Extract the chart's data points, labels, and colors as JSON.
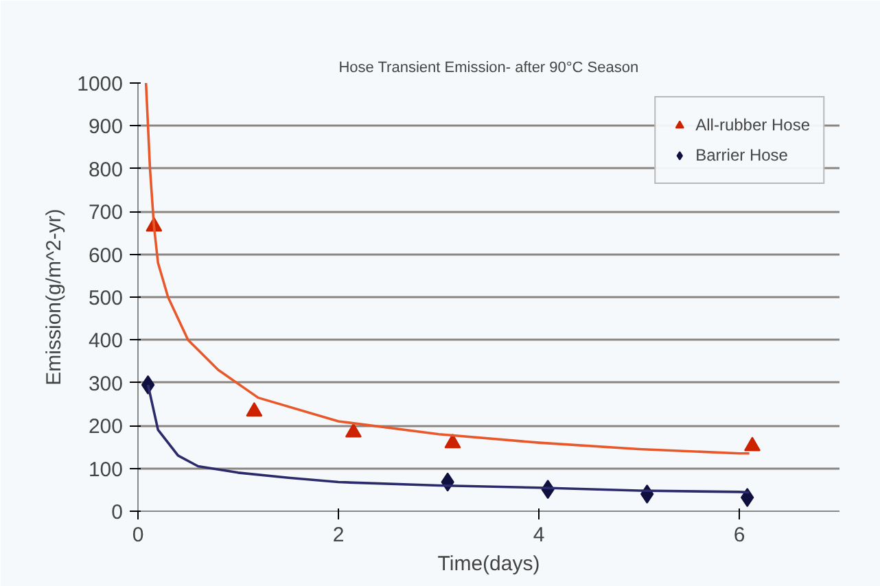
{
  "chart_data": {
    "type": "scatter",
    "title": "Hose Transient Emission- after 90°C Season",
    "xlabel": "Time(days)",
    "ylabel": "Emission(g/m^2-yr)",
    "xlim": [
      0,
      7
    ],
    "xticks": [
      0,
      2,
      4,
      6
    ],
    "ylim": [
      0,
      1000
    ],
    "yticks": [
      0,
      100,
      200,
      300,
      400,
      500,
      600,
      700,
      800,
      900,
      1000
    ],
    "grid": "y",
    "legend": "top right",
    "series": [
      {
        "name": "All-rubber Hose",
        "marker": "triangle",
        "color": "#cc2200",
        "x": [
          0.16,
          1.16,
          2.15,
          3.14,
          6.13
        ],
        "values": [
          665,
          233,
          184,
          159,
          152
        ]
      },
      {
        "name": "Barrier Hose",
        "marker": "diamond",
        "color": "#101040",
        "x": [
          0.1,
          3.09,
          4.09,
          5.08,
          6.08
        ],
        "values": [
          295,
          68,
          51,
          40,
          32
        ]
      },
      {
        "type": "line",
        "color": "#e8582a",
        "x": [
          0.08,
          0.12,
          0.16,
          0.2,
          0.3,
          0.5,
          0.8,
          1.2,
          2,
          3,
          4,
          5,
          6,
          6.1
        ],
        "values": [
          1000,
          800,
          665,
          580,
          500,
          400,
          330,
          265,
          210,
          180,
          160,
          145,
          135,
          135
        ]
      },
      {
        "type": "line",
        "color": "#2b2a6b",
        "x": [
          0.1,
          0.2,
          0.4,
          0.6,
          1,
          1.5,
          2,
          3,
          4,
          5,
          6,
          6.1
        ],
        "values": [
          295,
          190,
          130,
          105,
          90,
          78,
          68,
          60,
          55,
          48,
          45,
          44
        ]
      }
    ]
  }
}
